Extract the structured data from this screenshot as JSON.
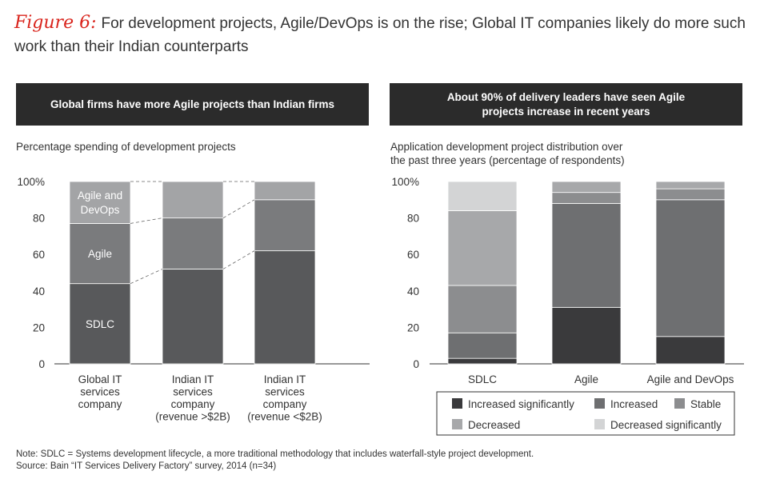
{
  "title": {
    "figure_label": "Figure 6:",
    "text": "For development projects, Agile/DevOps is on the rise; Global IT companies likely do more such work than their Indian counterparts"
  },
  "left_panel": {
    "banner": "Global firms have more Agile projects than Indian firms",
    "subtitle": "Percentage spending of development projects"
  },
  "right_panel": {
    "banner_line1": "About 90% of delivery leaders have seen Agile",
    "banner_line2": "projects increase in recent years",
    "subtitle_line1": "Application development project distribution over",
    "subtitle_line2": "the past three years (percentage of respondents)"
  },
  "chart_data": [
    {
      "type": "bar",
      "stacked": true,
      "categories": [
        [
          "Global IT",
          "services",
          "company"
        ],
        [
          "Indian IT",
          "services",
          "company",
          "(revenue >$2B)"
        ],
        [
          "Indian IT",
          "services",
          "company",
          "(revenue <$2B)"
        ]
      ],
      "series": [
        {
          "name": "SDLC",
          "values": [
            44,
            52,
            62
          ],
          "color": "#58595b"
        },
        {
          "name": "Agile",
          "values": [
            33,
            28,
            28
          ],
          "color": "#7a7b7d"
        },
        {
          "name": "Agile and DevOps",
          "values": [
            23,
            20,
            10
          ],
          "color": "#a3a4a6"
        }
      ],
      "segment_labels": [
        {
          "series": 0,
          "text": [
            "SDLC"
          ]
        },
        {
          "series": 1,
          "text": [
            "Agile"
          ]
        },
        {
          "series": 2,
          "text": [
            "Agile and",
            "DevOps"
          ]
        }
      ],
      "yticks": [
        "0",
        "20",
        "40",
        "60",
        "80",
        "100%"
      ],
      "ylim": [
        0,
        100
      ],
      "grid": false
    },
    {
      "type": "bar",
      "stacked": true,
      "categories": [
        "SDLC",
        "Agile",
        "Agile and DevOps"
      ],
      "series": [
        {
          "name": "Increased significantly",
          "values": [
            3,
            31,
            15
          ],
          "color": "#3a3a3c"
        },
        {
          "name": "Increased",
          "values": [
            14,
            57,
            75
          ],
          "color": "#6e6f71"
        },
        {
          "name": "Stable",
          "values": [
            26,
            6,
            6
          ],
          "color": "#8c8d8f"
        },
        {
          "name": "Decreased",
          "values": [
            41,
            6,
            4
          ],
          "color": "#a7a8aa"
        },
        {
          "name": "Decreased significantly",
          "values": [
            16,
            0,
            0
          ],
          "color": "#d3d4d5"
        }
      ],
      "yticks": [
        "0",
        "20",
        "40",
        "60",
        "80",
        "100%"
      ],
      "ylim": [
        0,
        100
      ],
      "grid": false,
      "legend_position": "bottom"
    }
  ],
  "note": {
    "line1": "Note: SDLC = Systems development lifecycle, a more traditional methodology that includes waterfall-style project development.",
    "line2": "Source: Bain “IT Services Delivery Factory” survey, 2014 (n=34)"
  }
}
